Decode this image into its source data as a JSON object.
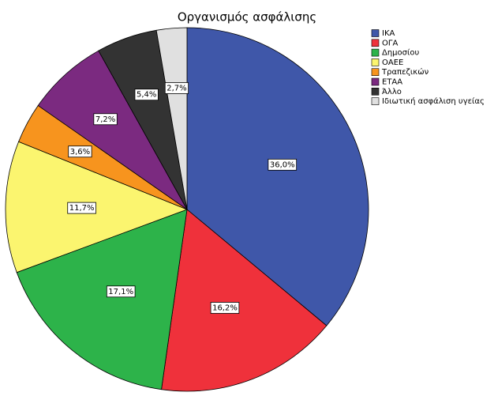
{
  "chart_data": {
    "type": "pie",
    "title": "Οργανισμός ασφάλισης",
    "categories": [
      "ΙΚΑ",
      "ΟΓΑ",
      "Δημοσίου",
      "ΟΑΕΕ",
      "Τραπεζικών",
      "ΕΤΑΑ",
      "Άλλο",
      "Ιδιωτική ασφάλιση υγείας"
    ],
    "values": [
      36.0,
      16.2,
      17.1,
      11.7,
      3.6,
      7.2,
      5.4,
      2.7
    ],
    "value_labels": [
      "36,0%",
      "16,2%",
      "17,1%",
      "11,7%",
      "3,6%",
      "7,2%",
      "5,4%",
      "2,7%"
    ],
    "colors": [
      "#3f57a9",
      "#ef313b",
      "#2db34a",
      "#fbf56f",
      "#f7941e",
      "#7b2a80",
      "#333333",
      "#e0e0e0"
    ],
    "legend": "top-right"
  }
}
